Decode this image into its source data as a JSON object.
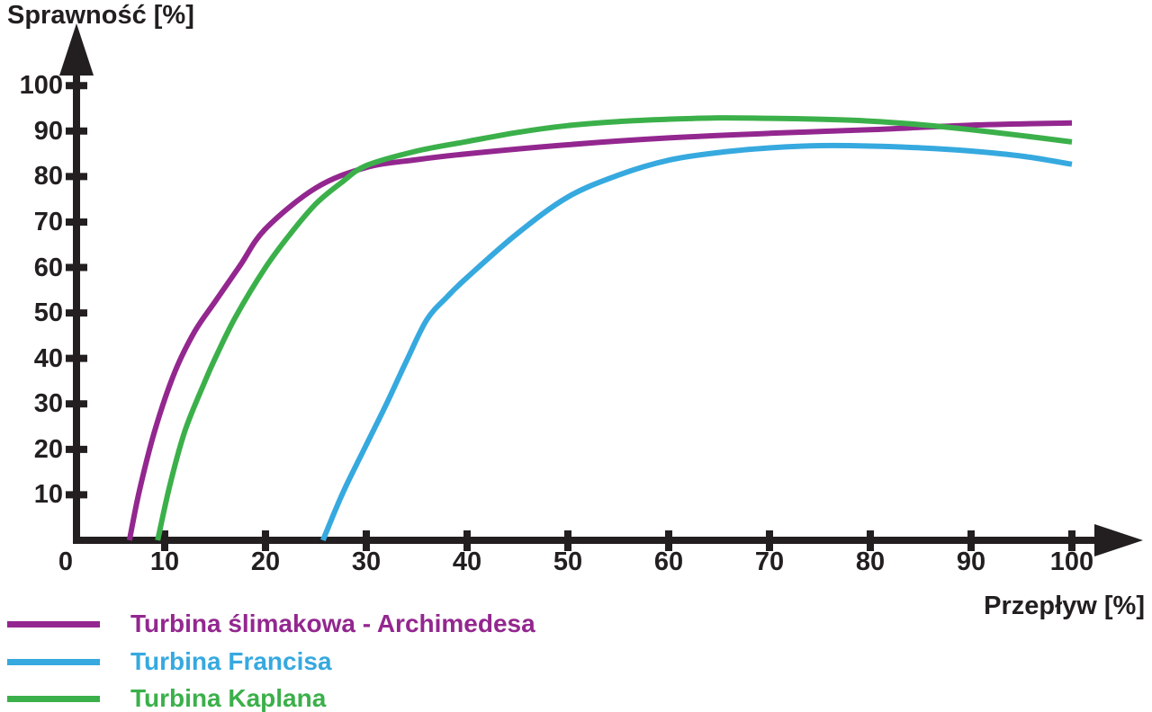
{
  "chart_data": {
    "type": "line",
    "title": "",
    "xlabel": "Przepływ [%]",
    "ylabel": "Sprawność [%]",
    "xlim": [
      0,
      107
    ],
    "ylim": [
      0,
      107
    ],
    "grid": false,
    "legend_position": "bottom-left",
    "origin_label": "0",
    "x_ticks": [
      10,
      20,
      30,
      40,
      50,
      60,
      70,
      80,
      90,
      100
    ],
    "y_ticks": [
      10,
      20,
      30,
      40,
      50,
      60,
      70,
      80,
      90,
      100
    ],
    "series": [
      {
        "name": "Turbina ślimakowa - Archimedesa",
        "color": "#93278F",
        "points": [
          [
            6.5,
            0
          ],
          [
            7.5,
            11
          ],
          [
            9,
            24
          ],
          [
            11,
            37
          ],
          [
            13,
            46
          ],
          [
            15,
            52.5
          ],
          [
            17.5,
            60.5
          ],
          [
            20,
            68.5
          ],
          [
            25,
            77.5
          ],
          [
            30,
            82
          ],
          [
            35,
            83.7
          ],
          [
            40,
            85
          ],
          [
            50,
            87
          ],
          [
            60,
            88.5
          ],
          [
            70,
            89.5
          ],
          [
            80,
            90.3
          ],
          [
            90,
            91.3
          ],
          [
            100,
            91.8
          ]
        ]
      },
      {
        "name": "Turbina Francisa",
        "color": "#36A9DF",
        "points": [
          [
            25.7,
            0
          ],
          [
            27,
            7
          ],
          [
            28,
            12
          ],
          [
            30,
            21
          ],
          [
            32,
            30
          ],
          [
            34,
            39.5
          ],
          [
            36,
            48.5
          ],
          [
            38,
            53.5
          ],
          [
            40,
            57.8
          ],
          [
            45,
            67.5
          ],
          [
            50,
            75.5
          ],
          [
            55,
            80.3
          ],
          [
            60,
            83.6
          ],
          [
            65,
            85.3
          ],
          [
            70,
            86.3
          ],
          [
            75,
            86.8
          ],
          [
            80,
            86.7
          ],
          [
            85,
            86.3
          ],
          [
            90,
            85.6
          ],
          [
            95,
            84.5
          ],
          [
            100,
            82.7
          ]
        ]
      },
      {
        "name": "Turbina Kaplana",
        "color": "#3BB04A",
        "points": [
          [
            9.3,
            0
          ],
          [
            10.5,
            12
          ],
          [
            12,
            24
          ],
          [
            14,
            35
          ],
          [
            15,
            40
          ],
          [
            17,
            49
          ],
          [
            20,
            60
          ],
          [
            22.5,
            67.5
          ],
          [
            25,
            74
          ],
          [
            27.5,
            78.6
          ],
          [
            30,
            82.4
          ],
          [
            35,
            85.6
          ],
          [
            40,
            87.7
          ],
          [
            45,
            89.7
          ],
          [
            50,
            91.2
          ],
          [
            55,
            92.1
          ],
          [
            60,
            92.6
          ],
          [
            65,
            92.9
          ],
          [
            70,
            92.8
          ],
          [
            75,
            92.6
          ],
          [
            80,
            92.2
          ],
          [
            85,
            91.4
          ],
          [
            90,
            90.3
          ],
          [
            95,
            89
          ],
          [
            100,
            87.6
          ]
        ]
      }
    ]
  },
  "colors": {
    "axis": "#231F20",
    "background": "#FFFFFF"
  }
}
